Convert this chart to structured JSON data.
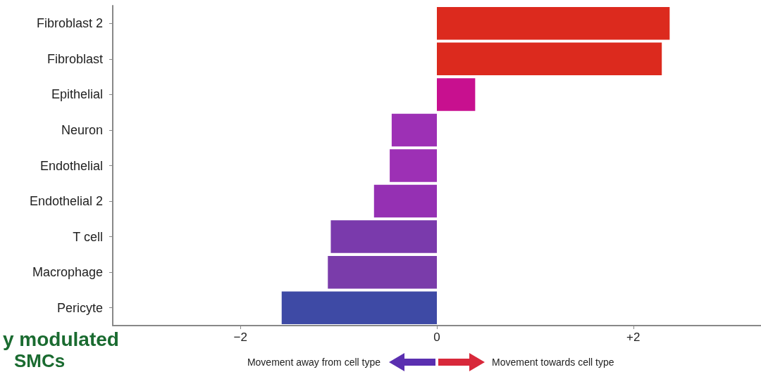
{
  "chart_data": {
    "type": "bar",
    "orientation": "horizontal",
    "categories": [
      "Fibroblast 2",
      "Fibroblast",
      "Epithelial",
      "Neuron",
      "Endothelial",
      "Endothelial 2",
      "T cell",
      "Macrophage",
      "Pericyte"
    ],
    "values": [
      2.37,
      2.29,
      0.39,
      -0.46,
      -0.48,
      -0.64,
      -1.08,
      -1.11,
      -1.58
    ],
    "colors": [
      "#dc2a1e",
      "#dc2a1e",
      "#c8108f",
      "#9d30b5",
      "#9d30b5",
      "#9530b3",
      "#7a3aac",
      "#7a3caa",
      "#3e4aa5"
    ],
    "xlim": [
      -3.3,
      3.3
    ],
    "xticks": [
      {
        "value": -2,
        "label": "−2"
      },
      0,
      {
        "value": 2,
        "label": "+2"
      }
    ],
    "grid": false,
    "annotations": [
      "y modulated",
      "SMCs",
      "Movement away from cell type",
      "Movement towards cell type"
    ]
  }
}
